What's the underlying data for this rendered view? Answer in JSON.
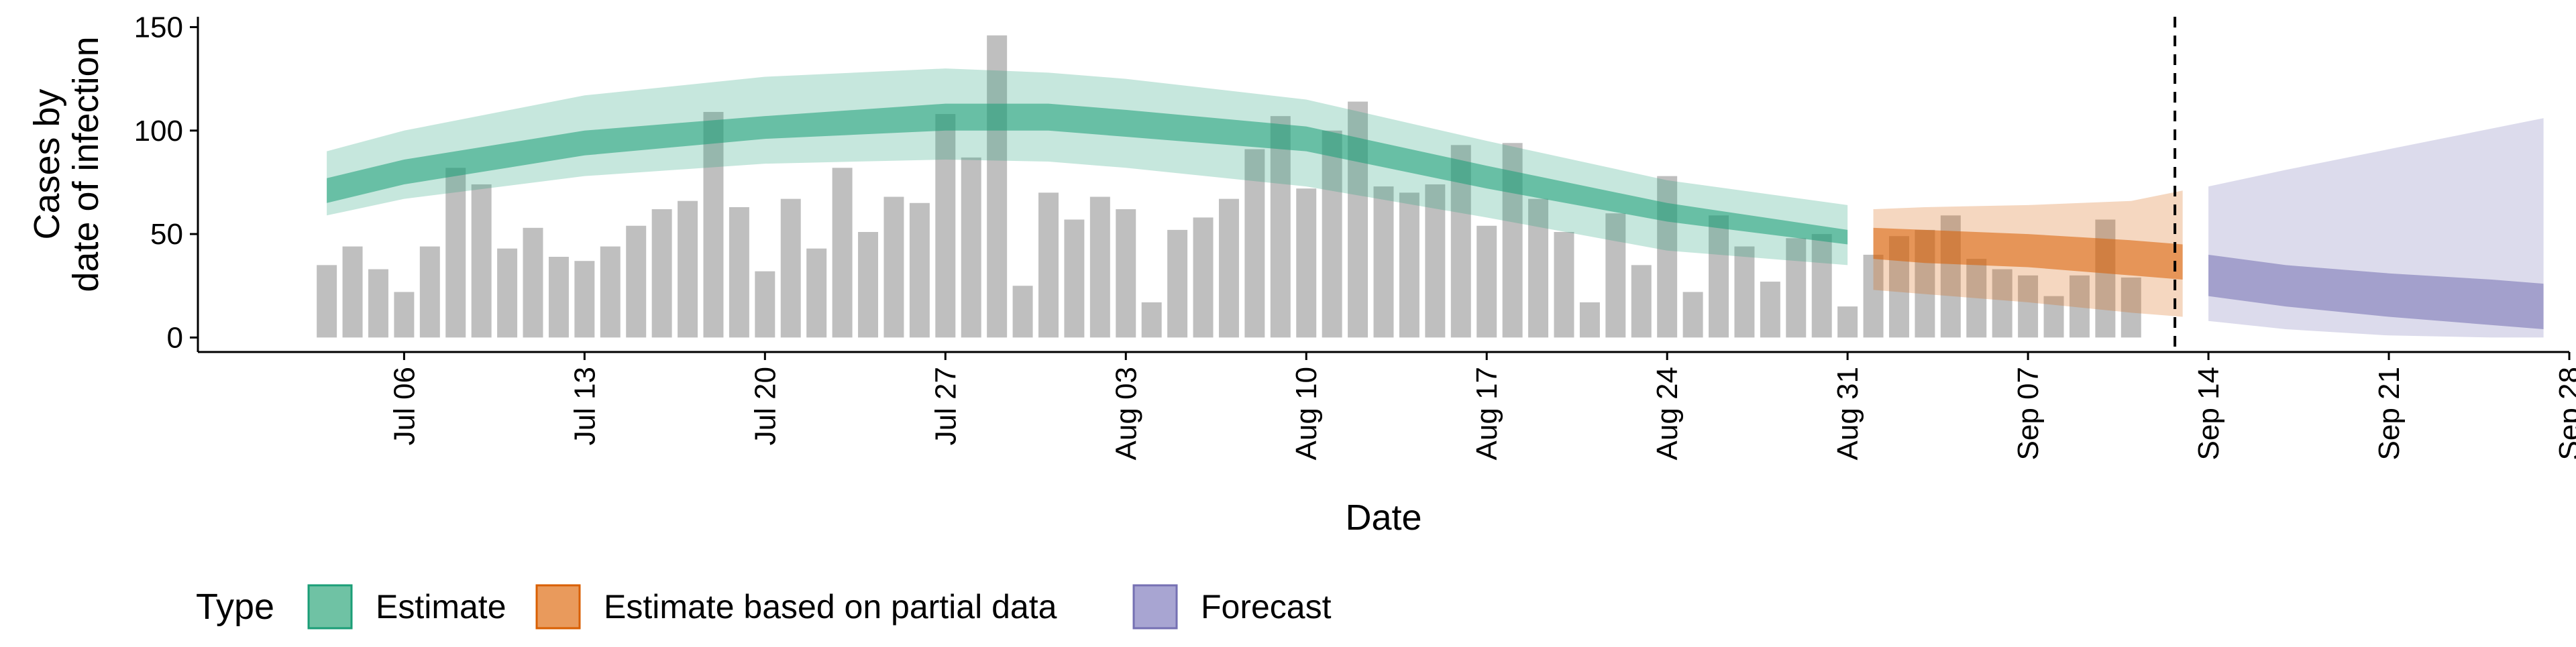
{
  "chart_data": {
    "type": "bar",
    "title": "",
    "xlabel": "Date",
    "ylabel_lines": [
      "Cases by",
      "date of infection"
    ],
    "ylim": [
      -7,
      155
    ],
    "y_ticks": [
      0,
      50,
      100,
      150
    ],
    "x_start_date": "2020-06-29",
    "xlim_days": [
      -1,
      91
    ],
    "x_ticks": [
      {
        "day": 7,
        "label": "Jul 06"
      },
      {
        "day": 14,
        "label": "Jul 13"
      },
      {
        "day": 21,
        "label": "Jul 20"
      },
      {
        "day": 28,
        "label": "Jul 27"
      },
      {
        "day": 35,
        "label": "Aug 03"
      },
      {
        "day": 42,
        "label": "Aug 10"
      },
      {
        "day": 49,
        "label": "Aug 17"
      },
      {
        "day": 56,
        "label": "Aug 24"
      },
      {
        "day": 63,
        "label": "Aug 31"
      },
      {
        "day": 70,
        "label": "Sep 07"
      },
      {
        "day": 77,
        "label": "Sep 14"
      },
      {
        "day": 84,
        "label": "Sep 21"
      },
      {
        "day": 91,
        "label": "Sep 28"
      }
    ],
    "bars": {
      "start_day": 4,
      "values": [
        35,
        44,
        33,
        22,
        44,
        82,
        74,
        43,
        53,
        39,
        37,
        44,
        54,
        62,
        66,
        109,
        63,
        32,
        67,
        43,
        82,
        51,
        68,
        65,
        108,
        87,
        146,
        25,
        70,
        57,
        68,
        62,
        17,
        52,
        58,
        67,
        91,
        107,
        72,
        100,
        114,
        73,
        70,
        74,
        93,
        54,
        94,
        67,
        51,
        17,
        60,
        35,
        78,
        22,
        59,
        44,
        27,
        48,
        50,
        15,
        40,
        49,
        52,
        59,
        38,
        33,
        30,
        20,
        30,
        57,
        29
      ],
      "color": "#808080"
    },
    "vline_day": 75.7,
    "series": [
      {
        "name": "Estimate",
        "color": "#1b9e77",
        "x_days": [
          4,
          7,
          14,
          21,
          28,
          32,
          35,
          42,
          49,
          56,
          63
        ],
        "inner_lo": [
          65,
          74,
          88,
          96,
          100,
          100,
          97,
          90,
          72,
          56,
          45
        ],
        "inner_hi": [
          77,
          86,
          100,
          107,
          113,
          113,
          110,
          102,
          83,
          65,
          52
        ],
        "outer_lo": [
          59,
          67,
          78,
          84,
          86,
          85,
          82,
          73,
          58,
          42,
          35
        ],
        "outer_hi": [
          90,
          100,
          117,
          126,
          130,
          128,
          125,
          115,
          95,
          76,
          64
        ]
      },
      {
        "name": "Estimate based on partial data",
        "color": "#d95f02",
        "x_days": [
          64,
          66,
          70,
          74,
          76
        ],
        "inner_lo": [
          38,
          36,
          34,
          30,
          28
        ],
        "inner_hi": [
          53,
          52,
          50,
          47,
          45
        ],
        "outer_lo": [
          23,
          21,
          17,
          12,
          10
        ],
        "outer_hi": [
          62,
          63,
          64,
          66,
          71
        ]
      },
      {
        "name": "Forecast",
        "color": "#7570b3",
        "x_days": [
          77,
          80,
          84,
          88,
          90
        ],
        "inner_lo": [
          20,
          15,
          10,
          6,
          4
        ],
        "inner_hi": [
          40,
          35,
          31,
          28,
          26
        ],
        "outer_lo": [
          8,
          4,
          1,
          0,
          0
        ],
        "outer_hi": [
          73,
          81,
          91,
          101,
          106
        ]
      }
    ],
    "legend": {
      "title": "Type",
      "position": "bottom",
      "entries": [
        {
          "label": "Estimate",
          "fill": "#6fc2a4",
          "stroke": "#1b9e77"
        },
        {
          "label": "Estimate based on partial data",
          "fill": "#e99a5c",
          "stroke": "#d95f02"
        },
        {
          "label": "Forecast",
          "fill": "#a8a5d2",
          "stroke": "#7570b3"
        }
      ]
    }
  }
}
